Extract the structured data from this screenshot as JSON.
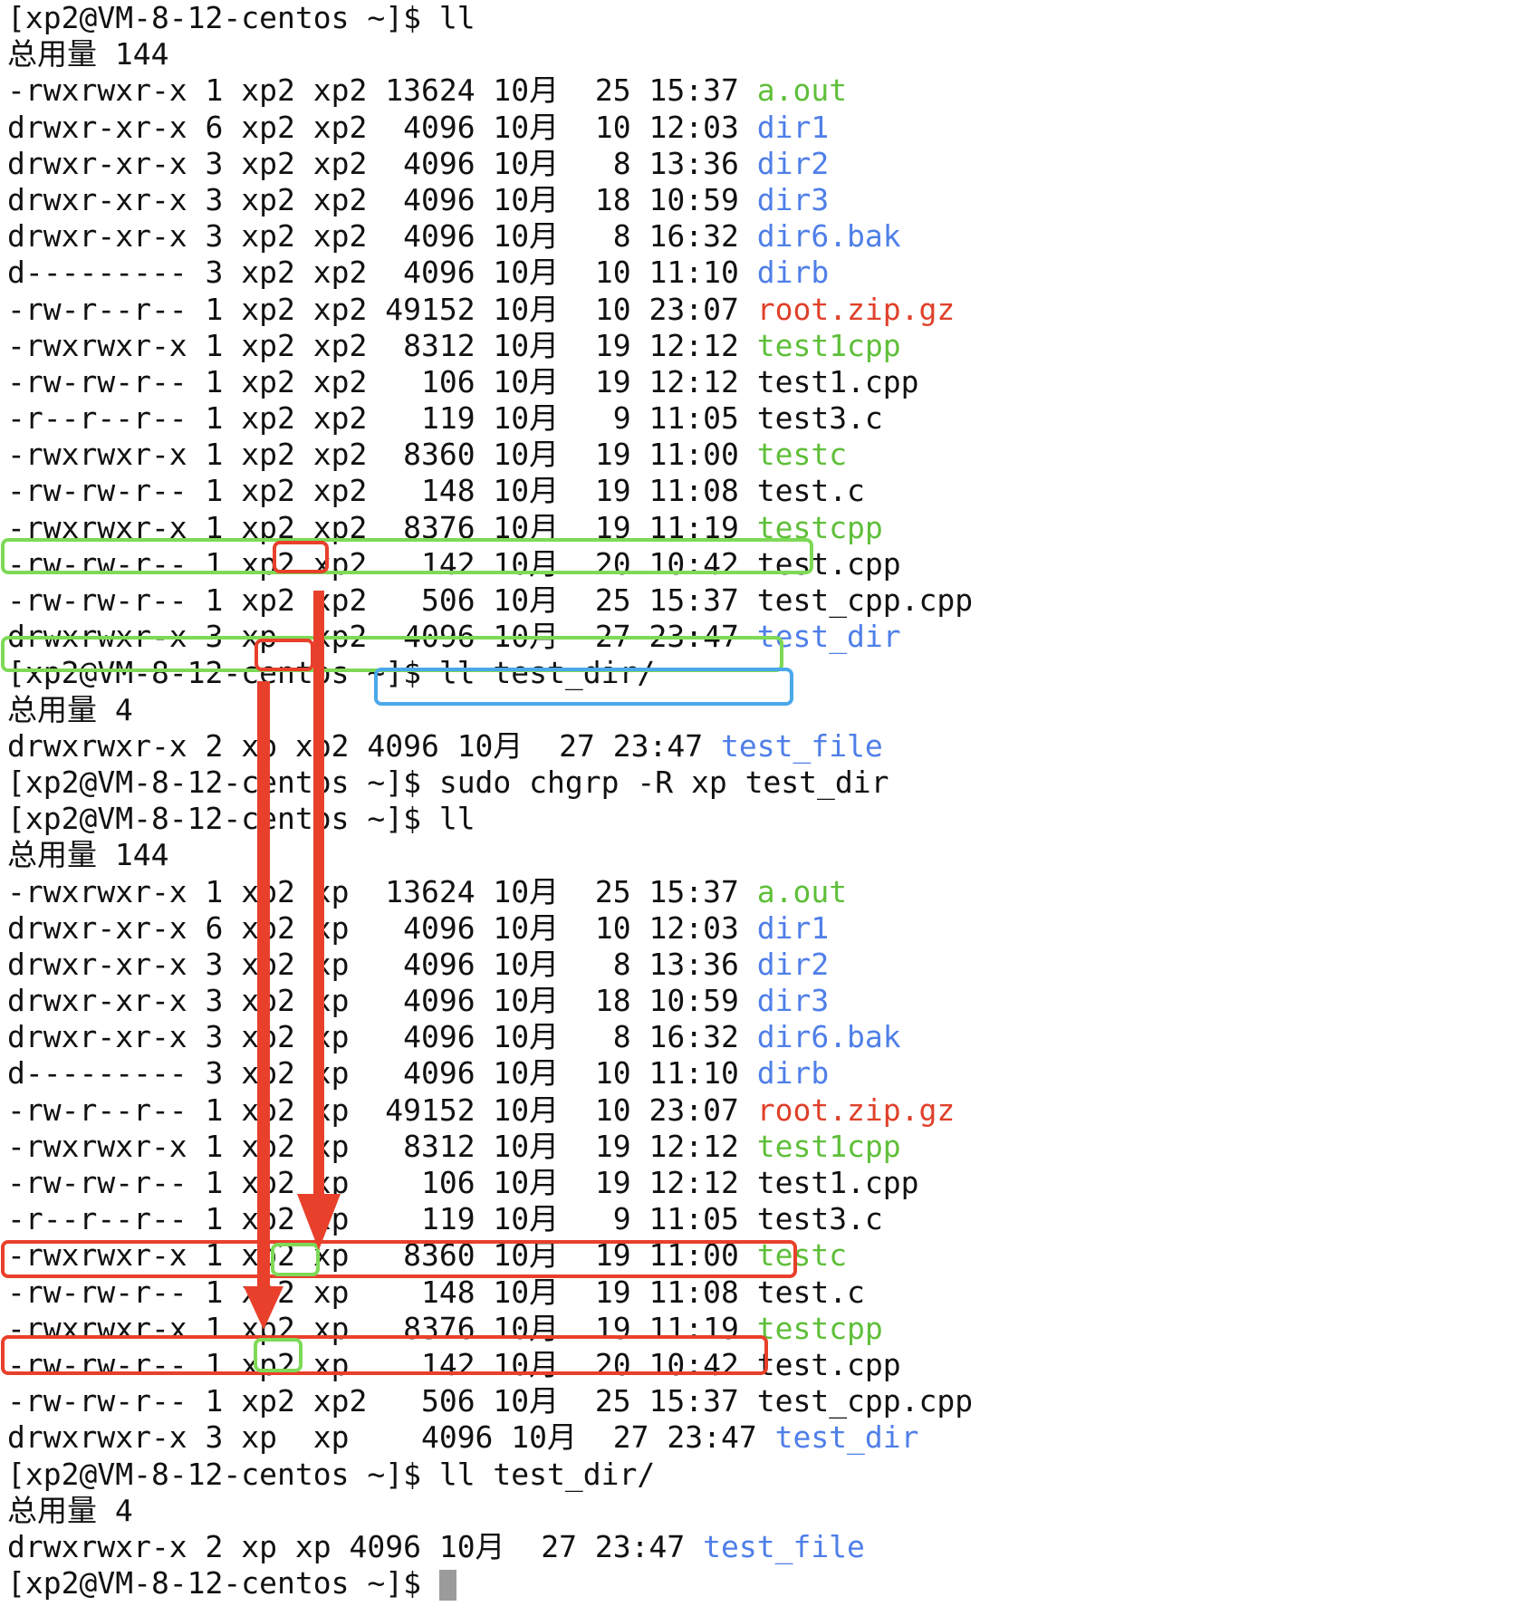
{
  "terminal": {
    "lines": [
      {
        "kind": "prompt",
        "text": "[xp2@VM-8-12-centos ~]$ ll"
      },
      {
        "kind": "total",
        "text": "总用量 144"
      },
      {
        "kind": "entry",
        "meta": "-rwxrwxr-x 1 xp2 xp2 13624 10月  25 15:37 ",
        "name": "a.out",
        "type": "exec"
      },
      {
        "kind": "entry",
        "meta": "drwxr-xr-x 6 xp2 xp2  4096 10月  10 12:03 ",
        "name": "dir1",
        "type": "dir"
      },
      {
        "kind": "entry",
        "meta": "drwxr-xr-x 3 xp2 xp2  4096 10月   8 13:36 ",
        "name": "dir2",
        "type": "dir"
      },
      {
        "kind": "entry",
        "meta": "drwxr-xr-x 3 xp2 xp2  4096 10月  18 10:59 ",
        "name": "dir3",
        "type": "dir"
      },
      {
        "kind": "entry",
        "meta": "drwxr-xr-x 3 xp2 xp2  4096 10月   8 16:32 ",
        "name": "dir6.bak",
        "type": "dir"
      },
      {
        "kind": "entry",
        "meta": "d--------- 3 xp2 xp2  4096 10月  10 11:10 ",
        "name": "dirb",
        "type": "dir"
      },
      {
        "kind": "entry",
        "meta": "-rw-r--r-- 1 xp2 xp2 49152 10月  10 23:07 ",
        "name": "root.zip.gz",
        "type": "archive"
      },
      {
        "kind": "entry",
        "meta": "-rwxrwxr-x 1 xp2 xp2  8312 10月  19 12:12 ",
        "name": "test1cpp",
        "type": "exec"
      },
      {
        "kind": "entry",
        "meta": "-rw-rw-r-- 1 xp2 xp2   106 10月  19 12:12 ",
        "name": "test1.cpp",
        "type": "plain"
      },
      {
        "kind": "entry",
        "meta": "-r--r--r-- 1 xp2 xp2   119 10月   9 11:05 ",
        "name": "test3.c",
        "type": "plain"
      },
      {
        "kind": "entry",
        "meta": "-rwxrwxr-x 1 xp2 xp2  8360 10月  19 11:00 ",
        "name": "testc",
        "type": "exec"
      },
      {
        "kind": "entry",
        "meta": "-rw-rw-r-- 1 xp2 xp2   148 10月  19 11:08 ",
        "name": "test.c",
        "type": "plain"
      },
      {
        "kind": "entry",
        "meta": "-rwxrwxr-x 1 xp2 xp2  8376 10月  19 11:19 ",
        "name": "testcpp",
        "type": "exec"
      },
      {
        "kind": "entry",
        "meta": "-rw-rw-r-- 1 xp2 xp2   142 10月  20 10:42 ",
        "name": "test.cpp",
        "type": "plain"
      },
      {
        "kind": "entry",
        "meta": "-rw-rw-r-- 1 xp2 xp2   506 10月  25 15:37 ",
        "name": "test_cpp.cpp",
        "type": "plain"
      },
      {
        "kind": "entry",
        "meta": "drwxrwxr-x 3 xp  xp2  4096 10月  27 23:47 ",
        "name": "test_dir",
        "type": "dir"
      },
      {
        "kind": "prompt",
        "text": "[xp2@VM-8-12-centos ~]$ ll test_dir/"
      },
      {
        "kind": "total",
        "text": "总用量 4"
      },
      {
        "kind": "entry",
        "meta": "drwxrwxr-x 2 xp xp2 4096 10月  27 23:47 ",
        "name": "test_file",
        "type": "dir"
      },
      {
        "kind": "prompt",
        "text": "[xp2@VM-8-12-centos ~]$ sudo chgrp -R xp test_dir"
      },
      {
        "kind": "prompt",
        "text": "[xp2@VM-8-12-centos ~]$ ll"
      },
      {
        "kind": "total",
        "text": "总用量 144"
      },
      {
        "kind": "entry",
        "meta": "-rwxrwxr-x 1 xp2 xp  13624 10月  25 15:37 ",
        "name": "a.out",
        "type": "exec"
      },
      {
        "kind": "entry",
        "meta": "drwxr-xr-x 6 xp2 xp   4096 10月  10 12:03 ",
        "name": "dir1",
        "type": "dir"
      },
      {
        "kind": "entry",
        "meta": "drwxr-xr-x 3 xp2 xp   4096 10月   8 13:36 ",
        "name": "dir2",
        "type": "dir"
      },
      {
        "kind": "entry",
        "meta": "drwxr-xr-x 3 xp2 xp   4096 10月  18 10:59 ",
        "name": "dir3",
        "type": "dir"
      },
      {
        "kind": "entry",
        "meta": "drwxr-xr-x 3 xp2 xp   4096 10月   8 16:32 ",
        "name": "dir6.bak",
        "type": "dir"
      },
      {
        "kind": "entry",
        "meta": "d--------- 3 xp2 xp   4096 10月  10 11:10 ",
        "name": "dirb",
        "type": "dir"
      },
      {
        "kind": "entry",
        "meta": "-rw-r--r-- 1 xp2 xp  49152 10月  10 23:07 ",
        "name": "root.zip.gz",
        "type": "archive"
      },
      {
        "kind": "entry",
        "meta": "-rwxrwxr-x 1 xp2 xp   8312 10月  19 12:12 ",
        "name": "test1cpp",
        "type": "exec"
      },
      {
        "kind": "entry",
        "meta": "-rw-rw-r-- 1 xp2 xp    106 10月  19 12:12 ",
        "name": "test1.cpp",
        "type": "plain"
      },
      {
        "kind": "entry",
        "meta": "-r--r--r-- 1 xp2 xp    119 10月   9 11:05 ",
        "name": "test3.c",
        "type": "plain"
      },
      {
        "kind": "entry",
        "meta": "-rwxrwxr-x 1 xp2 xp   8360 10月  19 11:00 ",
        "name": "testc",
        "type": "exec"
      },
      {
        "kind": "entry",
        "meta": "-rw-rw-r-- 1 xp2 xp    148 10月  19 11:08 ",
        "name": "test.c",
        "type": "plain"
      },
      {
        "kind": "entry",
        "meta": "-rwxrwxr-x 1 xp2 xp   8376 10月  19 11:19 ",
        "name": "testcpp",
        "type": "exec"
      },
      {
        "kind": "entry",
        "meta": "-rw-rw-r-- 1 xp2 xp    142 10月  20 10:42 ",
        "name": "test.cpp",
        "type": "plain"
      },
      {
        "kind": "entry",
        "meta": "-rw-rw-r-- 1 xp2 xp2   506 10月  25 15:37 ",
        "name": "test_cpp.cpp",
        "type": "plain"
      },
      {
        "kind": "entry",
        "meta": "drwxrwxr-x 3 xp  xp    4096 10月  27 23:47 ",
        "name": "test_dir",
        "type": "dir"
      },
      {
        "kind": "prompt",
        "text": "[xp2@VM-8-12-centos ~]$ ll test_dir/"
      },
      {
        "kind": "total",
        "text": "总用量 4"
      },
      {
        "kind": "entry",
        "meta": "drwxrwxr-x 2 xp xp 4096 10月  27 23:47 ",
        "name": "test_file",
        "type": "dir"
      },
      {
        "kind": "prompt",
        "text": "[xp2@VM-8-12-centos ~]$ ",
        "cursor": true
      }
    ]
  },
  "annotations": {
    "colors": {
      "green": "#7ed957",
      "red": "#e8402b",
      "blue": "#4aa8ea",
      "arrow": "#e8402b"
    },
    "boxes": [
      {
        "name": "old-test-dir-row-box",
        "color": "green"
      },
      {
        "name": "old-test-dir-group-box",
        "color": "red"
      },
      {
        "name": "old-test-file-row-box",
        "color": "green"
      },
      {
        "name": "old-test-file-group-box",
        "color": "red"
      },
      {
        "name": "chgrp-command-box",
        "color": "blue"
      },
      {
        "name": "new-test-dir-row-box",
        "color": "red"
      },
      {
        "name": "new-test-dir-group-box",
        "color": "green"
      },
      {
        "name": "new-test-file-row-box",
        "color": "red"
      },
      {
        "name": "new-test-file-group-box",
        "color": "green"
      }
    ],
    "arrows": [
      {
        "name": "test-dir-group-change-arrow",
        "color": "arrow"
      },
      {
        "name": "test-file-group-change-arrow",
        "color": "arrow"
      }
    ]
  }
}
